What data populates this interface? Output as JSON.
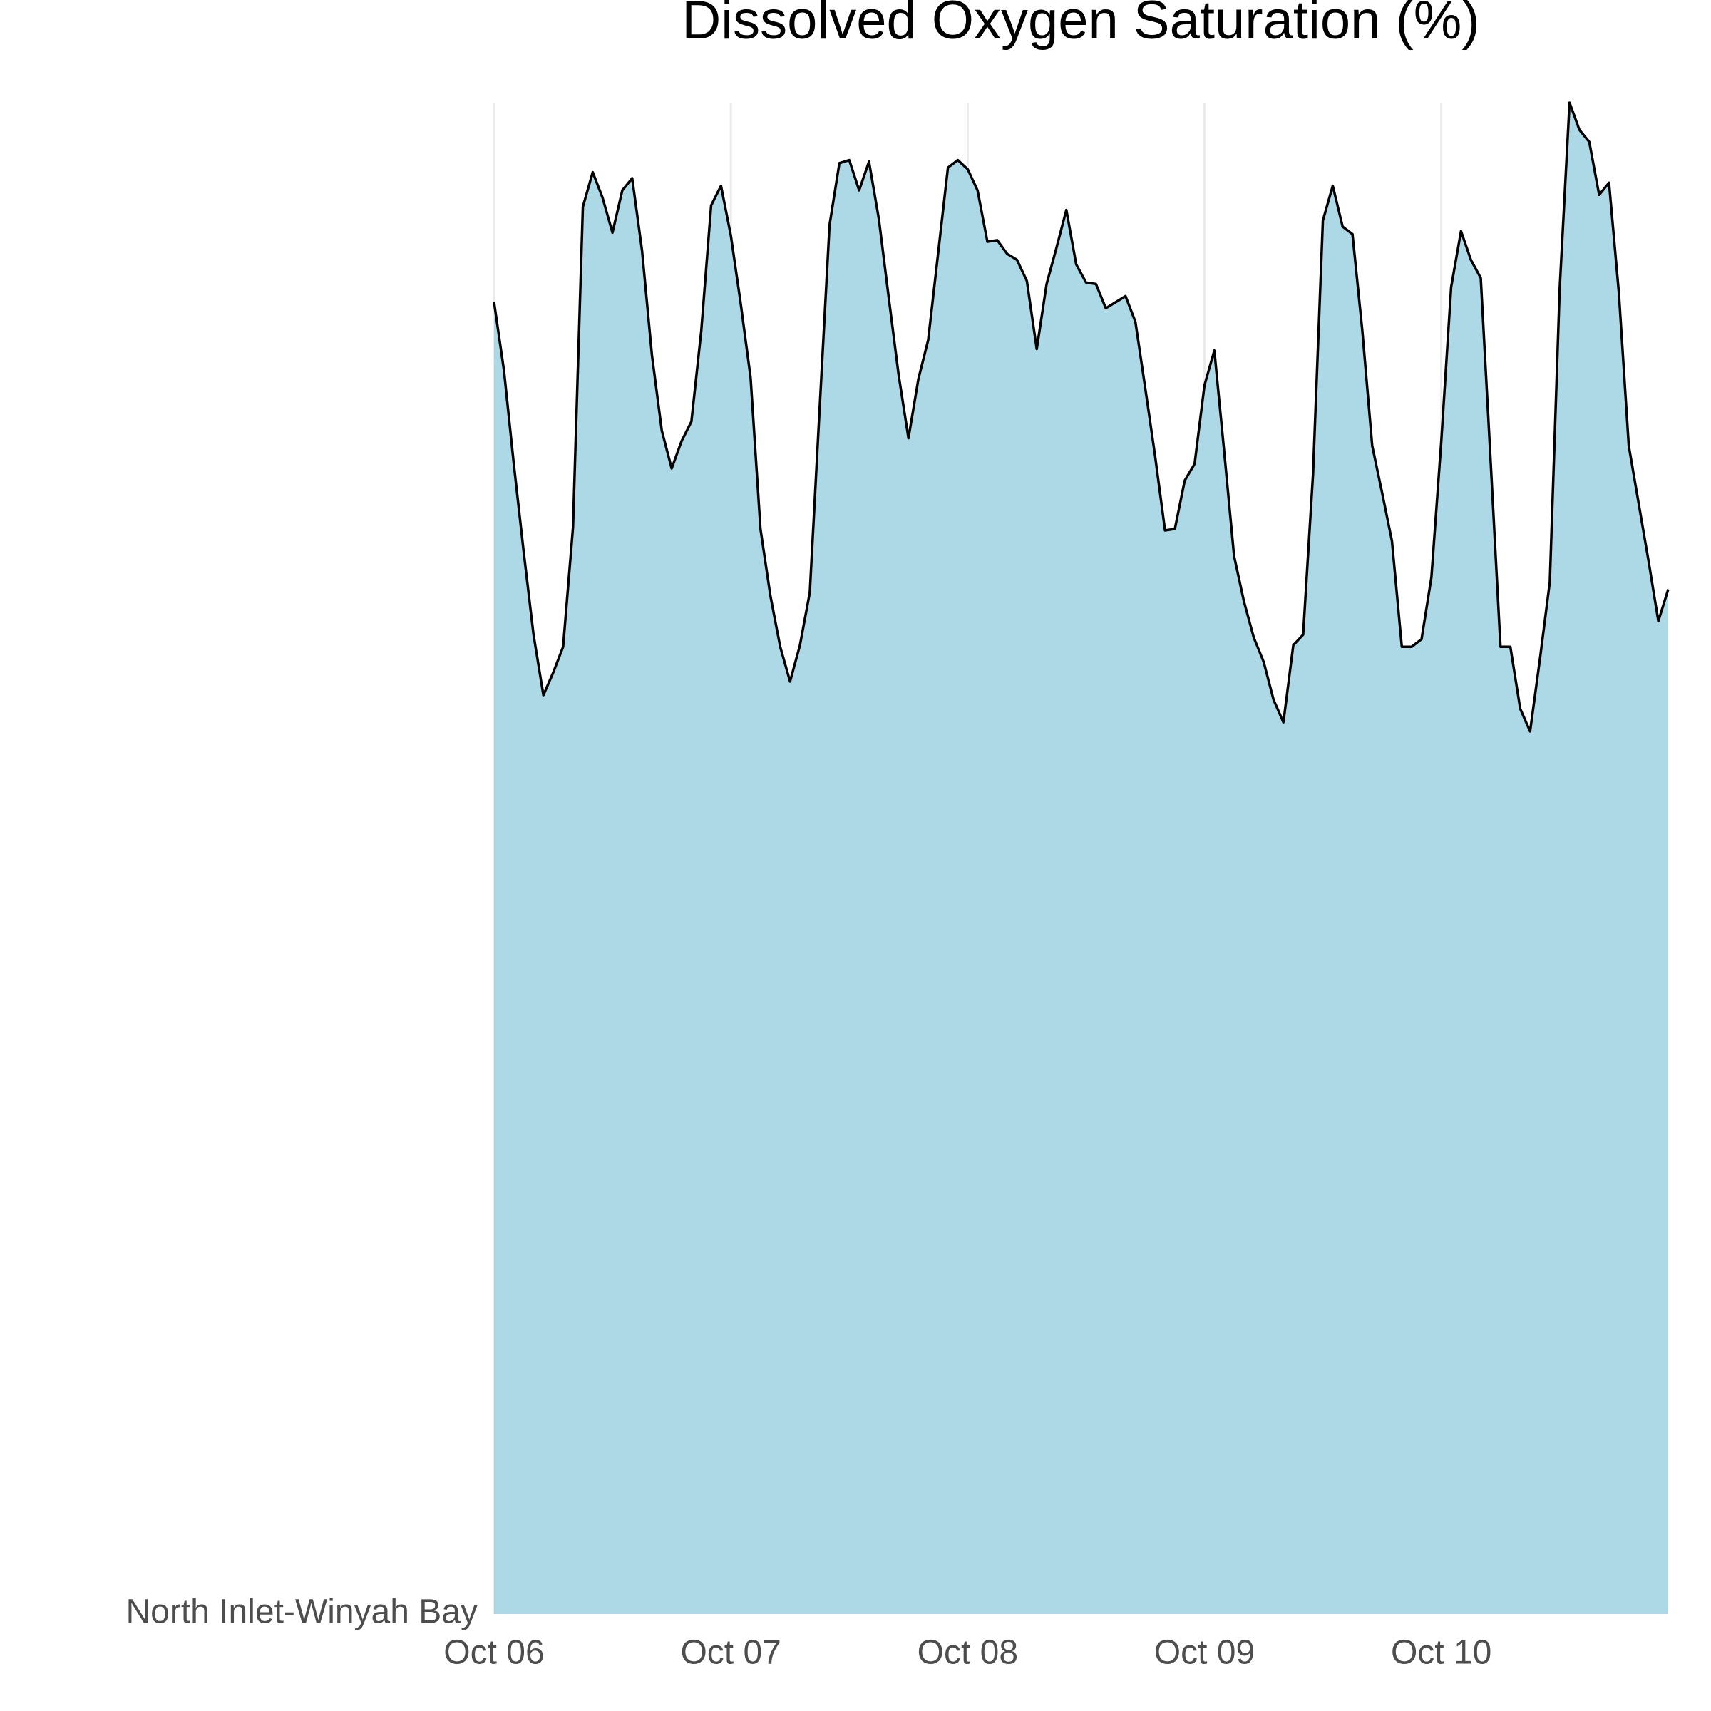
{
  "chart_data": {
    "type": "ridgeline",
    "title": "Dissolved Oxygen Saturation (%)",
    "series": [
      {
        "name": "North Inlet-Winyah Bay",
        "color": "#add8e6",
        "line_color": "#000000",
        "values": [
          86.8,
          82.3,
          76.1,
          70.3,
          64.8,
          60.8,
          62.3,
          64.0,
          71.9,
          93.1,
          95.4,
          93.7,
          91.4,
          94.2,
          95.0,
          90.2,
          83.3,
          78.3,
          75.8,
          77.6,
          78.9,
          84.9,
          93.2,
          94.5,
          91.2,
          86.7,
          81.8,
          71.8,
          67.4,
          64.0,
          61.7,
          64.1,
          67.6,
          79.8,
          91.9,
          96.0,
          96.2,
          94.2,
          96.1,
          92.3,
          87.1,
          82.0,
          77.8,
          81.7,
          84.3,
          90.0,
          95.7,
          96.2,
          95.6,
          94.2,
          90.8,
          90.9,
          90.0,
          89.6,
          88.2,
          83.7,
          88.0,
          90.4,
          92.9,
          89.3,
          88.1,
          88.0,
          86.4,
          86.8,
          87.2,
          85.5,
          81.1,
          76.6,
          71.7,
          71.8,
          75.0,
          76.1,
          81.3,
          83.6,
          76.9,
          70.0,
          67.0,
          64.6,
          63.0,
          60.5,
          59.0,
          64.1,
          64.8,
          75.4,
          92.2,
          94.5,
          91.8,
          91.3,
          84.9,
          77.3,
          74.2,
          71.0,
          64.0,
          64.0,
          64.5,
          68.6,
          77.6,
          87.8,
          91.5,
          89.6,
          88.4,
          76.3,
          64.0,
          64.0,
          59.9,
          58.4,
          63.2,
          68.3,
          87.7,
          100.0,
          98.2,
          97.4,
          93.9,
          94.7,
          87.4,
          77.3,
          73.5,
          69.7,
          65.7,
          67.8
        ]
      }
    ],
    "x": [
      0,
      1,
      2,
      3,
      4,
      5,
      6,
      7,
      8,
      9,
      10,
      11,
      12,
      13,
      14,
      15,
      16,
      17,
      18,
      19,
      20,
      21,
      22,
      23,
      24,
      25,
      26,
      27,
      28,
      29,
      30,
      31,
      32,
      33,
      34,
      35,
      36,
      37,
      38,
      39,
      40,
      41,
      42,
      43,
      44,
      45,
      46,
      47,
      48,
      49,
      50,
      51,
      52,
      53,
      54,
      55,
      56,
      57,
      58,
      59,
      60,
      61,
      62,
      63,
      64,
      65,
      66,
      67,
      68,
      69,
      70,
      71,
      72,
      73,
      74,
      75,
      76,
      77,
      78,
      79,
      80,
      81,
      82,
      83,
      84,
      85,
      86,
      87,
      88,
      89,
      90,
      91,
      92,
      93,
      94,
      95,
      96,
      97,
      98,
      99,
      100,
      101,
      102,
      103,
      104,
      105,
      106,
      107,
      108,
      109,
      110,
      111,
      112,
      113,
      114,
      115,
      116,
      117,
      118,
      119
    ],
    "xlim": [
      0,
      119
    ],
    "xticks": [
      {
        "value": 0,
        "label": "Oct 06"
      },
      {
        "value": 24,
        "label": "Oct 07"
      },
      {
        "value": 48,
        "label": "Oct 08"
      },
      {
        "value": 72,
        "label": "Oct 09"
      },
      {
        "value": 96,
        "label": "Oct 10"
      }
    ],
    "ylim": [
      0,
      100
    ],
    "grid": true
  }
}
